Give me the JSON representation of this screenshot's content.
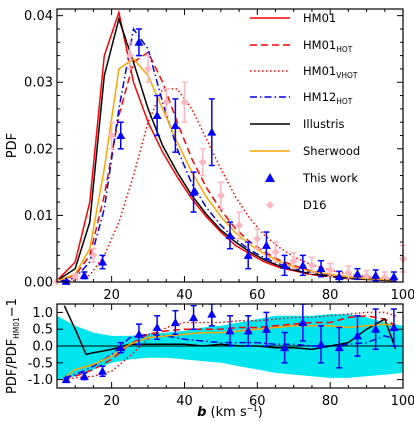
{
  "chart_data": [
    {
      "type": "line",
      "panel": "top",
      "ylabel": "PDF",
      "xlim": [
        5,
        100
      ],
      "ylim": [
        0,
        0.041
      ],
      "x_ticks": [
        "20",
        "40",
        "60",
        "80",
        "100"
      ],
      "y_ticks": [
        "0.00",
        "0.01",
        "0.02",
        "0.03",
        "0.04"
      ],
      "series": [
        {
          "name": "HM01",
          "color": "#ff0000",
          "dash": "solid",
          "x": [
            5,
            10,
            14,
            18,
            22,
            26,
            30,
            34,
            38,
            42,
            46,
            50,
            54,
            58,
            62,
            66,
            70,
            74,
            78,
            82,
            86,
            90,
            94,
            98
          ],
          "y": [
            0.0002,
            0.003,
            0.012,
            0.034,
            0.0405,
            0.03,
            0.024,
            0.0195,
            0.0158,
            0.0125,
            0.0098,
            0.0075,
            0.0055,
            0.0042,
            0.003,
            0.0022,
            0.0017,
            0.0012,
            0.0009,
            0.0007,
            0.0005,
            0.0004,
            0.0003,
            0.0002
          ]
        },
        {
          "name": "HM01_HOT",
          "color": "#ff0000",
          "dash": "dash",
          "x": [
            5,
            10,
            14,
            18,
            22,
            26,
            30,
            34,
            38,
            42,
            46,
            50,
            54,
            58,
            62,
            66,
            70,
            74,
            78,
            82,
            86,
            90,
            94,
            98
          ],
          "y": [
            0.0001,
            0.001,
            0.004,
            0.013,
            0.025,
            0.033,
            0.0345,
            0.03,
            0.024,
            0.0185,
            0.0142,
            0.0108,
            0.008,
            0.006,
            0.0045,
            0.0033,
            0.0025,
            0.0018,
            0.0013,
            0.001,
            0.0007,
            0.0005,
            0.0004,
            0.0003
          ]
        },
        {
          "name": "HM01_VHOT",
          "color": "#ff0000",
          "dash": "dot",
          "x": [
            5,
            10,
            14,
            18,
            22,
            26,
            30,
            34,
            38,
            42,
            46,
            50,
            54,
            58,
            62,
            66,
            70,
            74,
            78,
            82,
            86,
            90,
            94,
            98
          ],
          "y": [
            0,
            0.0003,
            0.001,
            0.004,
            0.009,
            0.016,
            0.024,
            0.029,
            0.029,
            0.026,
            0.0215,
            0.017,
            0.0128,
            0.0095,
            0.007,
            0.0052,
            0.0038,
            0.0028,
            0.0021,
            0.0015,
            0.0011,
            0.0008,
            0.0006,
            0.0004
          ]
        },
        {
          "name": "HM12_HOT",
          "color": "#0000ee",
          "dash": "dashdot",
          "x": [
            5,
            10,
            14,
            18,
            22,
            26,
            30,
            34,
            38,
            42,
            46,
            50,
            54,
            58,
            62,
            66,
            70,
            74,
            78,
            82,
            86,
            90,
            94,
            98
          ],
          "y": [
            0,
            0.0006,
            0.003,
            0.011,
            0.026,
            0.038,
            0.035,
            0.027,
            0.02,
            0.0148,
            0.0112,
            0.0085,
            0.0064,
            0.0048,
            0.0036,
            0.0027,
            0.002,
            0.0015,
            0.0011,
            0.0008,
            0.0006,
            0.0005,
            0.0004,
            0.0003
          ]
        },
        {
          "name": "Illustris",
          "color": "#000000",
          "dash": "solid",
          "x": [
            5,
            10,
            14,
            18,
            22,
            26,
            30,
            34,
            38,
            42,
            46,
            50,
            54,
            58,
            62,
            66,
            70,
            74,
            78,
            82,
            86,
            90,
            94,
            98
          ],
          "y": [
            0.0002,
            0.002,
            0.009,
            0.031,
            0.0395,
            0.033,
            0.026,
            0.0205,
            0.0165,
            0.013,
            0.0102,
            0.0078,
            0.006,
            0.0045,
            0.0033,
            0.0024,
            0.0018,
            0.0013,
            0.001,
            0.0007,
            0.0005,
            0.0004,
            0.0003,
            0.0002
          ]
        },
        {
          "name": "Sherwood",
          "color": "#ffa500",
          "dash": "solid",
          "x": [
            5,
            10,
            14,
            18,
            22,
            26,
            30,
            34,
            38,
            42,
            46,
            50,
            54,
            58,
            62,
            66,
            70,
            74,
            78,
            82,
            86,
            90,
            94,
            98
          ],
          "y": [
            0.0001,
            0.0012,
            0.005,
            0.017,
            0.032,
            0.0335,
            0.031,
            0.026,
            0.021,
            0.0165,
            0.0128,
            0.0098,
            0.0074,
            0.0056,
            0.0042,
            0.0031,
            0.0023,
            0.0017,
            0.0013,
            0.001,
            0.0007,
            0.0005,
            0.0004,
            0.0003
          ]
        },
        {
          "name": "This work",
          "color": "#0000ff",
          "marker": "triangle",
          "x": [
            7.5,
            12.5,
            17.5,
            22.5,
            27.5,
            32.5,
            37.5,
            42.5,
            47.5,
            52.5,
            57.5,
            62.5,
            67.5,
            72.5,
            77.5,
            82.5,
            87.5,
            92.5,
            97.5
          ],
          "y": [
            0.0001,
            0.001,
            0.003,
            0.022,
            0.036,
            0.025,
            0.0235,
            0.0135,
            0.0225,
            0.007,
            0.004,
            0.0055,
            0.0025,
            0.0025,
            0.002,
            0.0008,
            0.0012,
            0.001,
            0.0008
          ],
          "err": [
            0.0001,
            0.0005,
            0.001,
            0.002,
            0.002,
            0.003,
            0.004,
            0.003,
            0.005,
            0.002,
            0.002,
            0.002,
            0.0015,
            0.0015,
            0.0012,
            0.0008,
            0.0008,
            0.0008,
            0.0007
          ]
        },
        {
          "name": "D16",
          "color": "#ffb6c1",
          "marker": "diamond",
          "x": [
            5,
            10,
            15,
            20,
            25,
            30,
            35,
            40,
            45,
            50,
            55,
            60,
            65,
            70,
            75,
            80,
            85,
            90,
            95,
            100
          ],
          "y": [
            0.0001,
            0.0008,
            0.004,
            0.022,
            0.034,
            0.032,
            0.027,
            0.027,
            0.018,
            0.013,
            0.0085,
            0.0065,
            0.0045,
            0.0032,
            0.0025,
            0.0018,
            0.0014,
            0.0009,
            0.0007,
            0.0035
          ],
          "err": [
            0.0001,
            0.0004,
            0.001,
            0.002,
            0.002,
            0.002,
            0.002,
            0.003,
            0.002,
            0.002,
            0.002,
            0.0015,
            0.0015,
            0.0012,
            0.0012,
            0.001,
            0.001,
            0.0008,
            0.0008,
            0.002
          ]
        }
      ]
    },
    {
      "type": "line",
      "panel": "bottom",
      "xlabel": "b",
      "xunit": "(km s",
      "xunit_exp": "−1",
      "ylabel": "PDF/PDF",
      "ylabel_sub": "HM01",
      "ylabel_tail": "−1",
      "xlim": [
        5,
        100
      ],
      "ylim": [
        -1.25,
        1.25
      ],
      "x_ticks": [
        "20",
        "40",
        "60",
        "80",
        "100"
      ],
      "y_ticks": [
        "1.0",
        "0.5",
        "0.0",
        "-0.5",
        "-1.0"
      ],
      "band": {
        "color": "#00e5ee",
        "x": [
          5,
          10,
          15,
          20,
          25,
          30,
          35,
          40,
          45,
          50,
          55,
          60,
          65,
          70,
          75,
          80,
          85,
          90,
          95,
          100
        ],
        "upper": [
          0.9,
          0.6,
          0.4,
          0.3,
          0.3,
          0.35,
          0.4,
          0.45,
          0.55,
          0.6,
          0.7,
          0.8,
          0.9,
          0.9,
          0.9,
          0.95,
          0.95,
          0.85,
          0.7,
          0.6
        ],
        "lower": [
          -1.0,
          -0.9,
          -0.7,
          -0.5,
          -0.4,
          -0.35,
          -0.35,
          -0.4,
          -0.45,
          -0.5,
          -0.6,
          -0.7,
          -0.8,
          -0.85,
          -0.9,
          -0.95,
          -0.95,
          -0.9,
          -0.85,
          -0.8
        ]
      },
      "zero_line": true,
      "series": [
        {
          "name": "HM01_HOT",
          "color": "#ff0000",
          "dash": "dash",
          "x": [
            7,
            10,
            15,
            20,
            25,
            30,
            35,
            40,
            45,
            50,
            55,
            60,
            65,
            70,
            75,
            80,
            85,
            90,
            95,
            98
          ],
          "y": [
            -0.95,
            -0.9,
            -0.7,
            -0.4,
            0.05,
            0.35,
            0.45,
            0.5,
            0.5,
            0.5,
            0.55,
            0.55,
            0.6,
            0.65,
            0.7,
            0.7,
            0.85,
            0.9,
            0.8,
            0.6
          ]
        },
        {
          "name": "HM01_VHOT",
          "color": "#ff0000",
          "dash": "dot",
          "x": [
            7,
            10,
            15,
            20,
            25,
            30,
            35,
            40,
            45,
            50,
            55,
            60,
            65,
            70,
            75,
            80,
            85,
            90,
            95,
            98
          ],
          "y": [
            -1.0,
            -0.95,
            -0.9,
            -0.75,
            -0.3,
            0.2,
            0.55,
            0.7,
            0.7,
            0.7,
            0.75,
            0.75,
            0.8,
            0.85,
            0.85,
            0.9,
            0.95,
            1.0,
            1.0,
            0.9
          ]
        },
        {
          "name": "HM12_HOT",
          "color": "#0000ee",
          "dash": "dashdot",
          "x": [
            7,
            10,
            15,
            20,
            25,
            30,
            35,
            40,
            45,
            50,
            55,
            60,
            65,
            70,
            75,
            80,
            85,
            90,
            95,
            98
          ],
          "y": [
            -0.95,
            -0.85,
            -0.6,
            -0.25,
            0.25,
            0.35,
            0.3,
            0.2,
            0.15,
            0.1,
            0.1,
            0.1,
            0.05,
            0.05,
            0.0,
            0.0,
            0.05,
            0.1,
            0.3,
            0.2
          ]
        },
        {
          "name": "Illustris",
          "color": "#000000",
          "dash": "solid",
          "x": [
            7,
            10,
            13,
            15,
            20,
            25,
            30,
            35,
            40,
            45,
            50,
            55,
            60,
            65,
            70,
            75,
            80,
            85,
            90,
            95,
            98
          ],
          "y": [
            1.2,
            0.5,
            -0.25,
            -0.2,
            -0.1,
            0.05,
            0.05,
            0.05,
            0.05,
            0.0,
            0.05,
            0.0,
            0.0,
            -0.05,
            -0.05,
            -0.1,
            0.0,
            0.1,
            0.5,
            0.8,
            -0.1
          ]
        },
        {
          "name": "Sherwood",
          "color": "#ffa500",
          "dash": "solid",
          "x": [
            7,
            10,
            15,
            20,
            25,
            30,
            35,
            40,
            45,
            50,
            55,
            60,
            65,
            70,
            75,
            80,
            85,
            90,
            95,
            98
          ],
          "y": [
            -0.95,
            -0.7,
            -0.55,
            -0.3,
            0.05,
            0.25,
            0.3,
            0.35,
            0.4,
            0.4,
            0.45,
            0.5,
            0.55,
            0.6,
            0.6,
            0.6,
            0.55,
            0.6,
            0.65,
            0.6
          ]
        },
        {
          "name": "This work",
          "color": "#0000ff",
          "marker": "triangle",
          "x": [
            7.5,
            12.5,
            17.5,
            22.5,
            27.5,
            32.5,
            37.5,
            42.5,
            47.5,
            52.5,
            57.5,
            62.5,
            67.5,
            72.5,
            77.5,
            82.5,
            87.5,
            92.5,
            97.5
          ],
          "y": [
            -1.0,
            -0.9,
            -0.75,
            -0.05,
            0.35,
            0.55,
            0.7,
            0.85,
            0.95,
            0.45,
            0.45,
            0.5,
            -0.05,
            0.7,
            0.05,
            -0.05,
            0.3,
            0.5,
            0.55
          ],
          "err": [
            0.05,
            0.1,
            0.15,
            0.15,
            0.3,
            0.35,
            0.35,
            0.35,
            0.35,
            0.45,
            0.45,
            0.5,
            0.45,
            0.55,
            0.55,
            0.6,
            0.6,
            0.6,
            0.55
          ]
        }
      ]
    }
  ]
}
